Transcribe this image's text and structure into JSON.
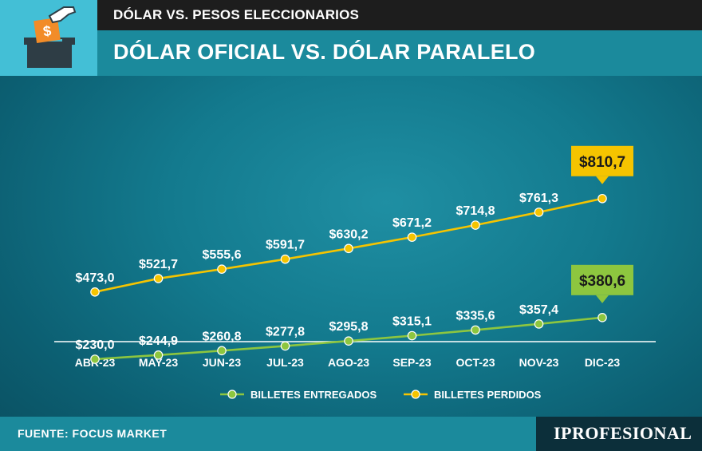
{
  "header": {
    "kicker": "DÓLAR VS. PESOS ELECCIONARIOS",
    "title": "DÓLAR OFICIAL VS. DÓLAR PARALELO",
    "icon": "ballot-box-dollar-icon"
  },
  "footer": {
    "source": "FUENTE: FOCUS MARKET",
    "brand": "IPROFESIONAL"
  },
  "colors": {
    "header_light": "#43bfd6",
    "header_dark": "#1d1d1d",
    "title_bar": "#1b8a9c",
    "series_green": "#8dc63f",
    "series_yellow": "#f5c400",
    "brand_bg": "#0c2f3a"
  },
  "chart_data": {
    "type": "line",
    "categories": [
      "ABR-23",
      "MAY-23",
      "JUN-23",
      "JUL-23",
      "AGO-23",
      "SEP-23",
      "OCT-23",
      "NOV-23",
      "DIC-23"
    ],
    "series": [
      {
        "name": "BILLETES PERDIDOS",
        "color": "#f5c400",
        "values": [
          473.0,
          521.7,
          555.6,
          591.7,
          630.2,
          671.2,
          714.8,
          761.3,
          810.7
        ],
        "labels": [
          "$473,0",
          "$521,7",
          "$555,6",
          "$591,7",
          "$630,2",
          "$671,2",
          "$714,8",
          "$761,3",
          "$810,7"
        ]
      },
      {
        "name": "BILLETES ENTREGADOS",
        "color": "#8dc63f",
        "values": [
          230.0,
          244.9,
          260.8,
          277.8,
          295.8,
          315.1,
          335.6,
          357.4,
          380.6
        ],
        "labels": [
          "$230,0",
          "$244,9",
          "$260,8",
          "$277,8",
          "$295,8",
          "$315,1",
          "$335,6",
          "$357,4",
          "$380,6"
        ]
      }
    ],
    "legend": [
      "BILLETES ENTREGADOS",
      "BILLETES PERDIDOS"
    ],
    "legend_position": "bottom",
    "grid": false
  }
}
